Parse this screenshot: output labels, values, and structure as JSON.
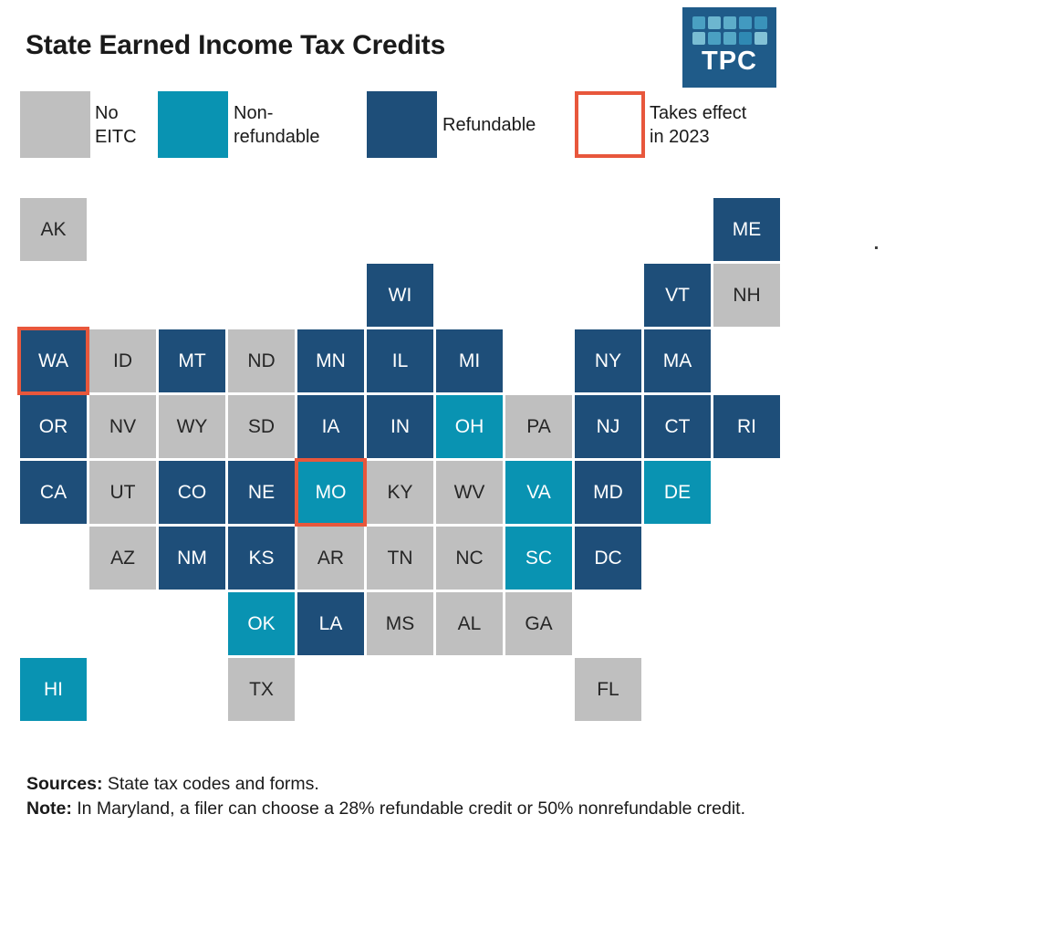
{
  "title": "State Earned Income Tax Credits",
  "logo": {
    "text": "TPC",
    "background": "#1f5b89",
    "squares": [
      [
        "#4aa0c2",
        "#6db6cf",
        "#5dadc9",
        "#429ac0",
        "#3a93ba"
      ],
      [
        "#79bdd3",
        "#4aa0c2",
        "#55a8c6",
        "#2f89b3",
        "#83c2d6"
      ]
    ]
  },
  "colors": {
    "no_eitc_gray": "#bfbfbf",
    "nonrefundable_teal": "#0993b2",
    "refundable_navy": "#1e4e79",
    "effect_2023_red": "#e8573c",
    "text_dark": "#1a1a1a",
    "tile_text_on_gray": "#262626",
    "tile_text_on_color": "#ffffff"
  },
  "legend": [
    {
      "type": "none",
      "label": "No EITC",
      "lines": [
        "No",
        "EITC"
      ],
      "color": "#bfbfbf"
    },
    {
      "type": "nonrefundable",
      "label": "Non-refundable",
      "lines": [
        "Non-",
        "refundable"
      ],
      "color": "#0993b2"
    },
    {
      "type": "refundable",
      "label": "Refundable",
      "lines": [
        "Refundable"
      ],
      "color": "#1e4e79"
    },
    {
      "type": "effect2023",
      "label": "Takes effect in 2023",
      "lines": [
        "Takes effect",
        "in 2023"
      ],
      "color": "#e8573c"
    }
  ],
  "footer": {
    "sources_label": "Sources:",
    "sources_text": " State tax codes and forms.",
    "note_label": "Note:",
    "note_text": " In Maryland, a filer can choose a 28% refundable credit or 50% nonrefundable credit."
  },
  "stray_dot": ".",
  "chart_data": {
    "type": "heatmap",
    "subtype": "state-tile-cartogram",
    "title": "State Earned Income Tax Credits",
    "legend_position": "top",
    "categories": [
      "No EITC",
      "Non-refundable",
      "Refundable",
      "Takes effect in 2023"
    ],
    "states": [
      {
        "code": "AK",
        "col": 0,
        "row": 0,
        "status": "none",
        "takes_effect_2023": false
      },
      {
        "code": "ME",
        "col": 10,
        "row": 0,
        "status": "refundable",
        "takes_effect_2023": false
      },
      {
        "code": "WI",
        "col": 5,
        "row": 1,
        "status": "refundable",
        "takes_effect_2023": false
      },
      {
        "code": "VT",
        "col": 9,
        "row": 1,
        "status": "refundable",
        "takes_effect_2023": false
      },
      {
        "code": "NH",
        "col": 10,
        "row": 1,
        "status": "none",
        "takes_effect_2023": false
      },
      {
        "code": "WA",
        "col": 0,
        "row": 2,
        "status": "refundable",
        "takes_effect_2023": true
      },
      {
        "code": "ID",
        "col": 1,
        "row": 2,
        "status": "none",
        "takes_effect_2023": false
      },
      {
        "code": "MT",
        "col": 2,
        "row": 2,
        "status": "refundable",
        "takes_effect_2023": false
      },
      {
        "code": "ND",
        "col": 3,
        "row": 2,
        "status": "none",
        "takes_effect_2023": false
      },
      {
        "code": "MN",
        "col": 4,
        "row": 2,
        "status": "refundable",
        "takes_effect_2023": false
      },
      {
        "code": "IL",
        "col": 5,
        "row": 2,
        "status": "refundable",
        "takes_effect_2023": false
      },
      {
        "code": "MI",
        "col": 6,
        "row": 2,
        "status": "refundable",
        "takes_effect_2023": false
      },
      {
        "code": "NY",
        "col": 8,
        "row": 2,
        "status": "refundable",
        "takes_effect_2023": false
      },
      {
        "code": "MA",
        "col": 9,
        "row": 2,
        "status": "refundable",
        "takes_effect_2023": false
      },
      {
        "code": "OR",
        "col": 0,
        "row": 3,
        "status": "refundable",
        "takes_effect_2023": false
      },
      {
        "code": "NV",
        "col": 1,
        "row": 3,
        "status": "none",
        "takes_effect_2023": false
      },
      {
        "code": "WY",
        "col": 2,
        "row": 3,
        "status": "none",
        "takes_effect_2023": false
      },
      {
        "code": "SD",
        "col": 3,
        "row": 3,
        "status": "none",
        "takes_effect_2023": false
      },
      {
        "code": "IA",
        "col": 4,
        "row": 3,
        "status": "refundable",
        "takes_effect_2023": false
      },
      {
        "code": "IN",
        "col": 5,
        "row": 3,
        "status": "refundable",
        "takes_effect_2023": false
      },
      {
        "code": "OH",
        "col": 6,
        "row": 3,
        "status": "nonrefundable",
        "takes_effect_2023": false
      },
      {
        "code": "PA",
        "col": 7,
        "row": 3,
        "status": "none",
        "takes_effect_2023": false
      },
      {
        "code": "NJ",
        "col": 8,
        "row": 3,
        "status": "refundable",
        "takes_effect_2023": false
      },
      {
        "code": "CT",
        "col": 9,
        "row": 3,
        "status": "refundable",
        "takes_effect_2023": false
      },
      {
        "code": "RI",
        "col": 10,
        "row": 3,
        "status": "refundable",
        "takes_effect_2023": false
      },
      {
        "code": "CA",
        "col": 0,
        "row": 4,
        "status": "refundable",
        "takes_effect_2023": false
      },
      {
        "code": "UT",
        "col": 1,
        "row": 4,
        "status": "none",
        "takes_effect_2023": false
      },
      {
        "code": "CO",
        "col": 2,
        "row": 4,
        "status": "refundable",
        "takes_effect_2023": false
      },
      {
        "code": "NE",
        "col": 3,
        "row": 4,
        "status": "refundable",
        "takes_effect_2023": false
      },
      {
        "code": "MO",
        "col": 4,
        "row": 4,
        "status": "nonrefundable",
        "takes_effect_2023": true
      },
      {
        "code": "KY",
        "col": 5,
        "row": 4,
        "status": "none",
        "takes_effect_2023": false
      },
      {
        "code": "WV",
        "col": 6,
        "row": 4,
        "status": "none",
        "takes_effect_2023": false
      },
      {
        "code": "VA",
        "col": 7,
        "row": 4,
        "status": "nonrefundable",
        "takes_effect_2023": false
      },
      {
        "code": "MD",
        "col": 8,
        "row": 4,
        "status": "refundable",
        "takes_effect_2023": false
      },
      {
        "code": "DE",
        "col": 9,
        "row": 4,
        "status": "nonrefundable",
        "takes_effect_2023": false
      },
      {
        "code": "AZ",
        "col": 1,
        "row": 5,
        "status": "none",
        "takes_effect_2023": false
      },
      {
        "code": "NM",
        "col": 2,
        "row": 5,
        "status": "refundable",
        "takes_effect_2023": false
      },
      {
        "code": "KS",
        "col": 3,
        "row": 5,
        "status": "refundable",
        "takes_effect_2023": false
      },
      {
        "code": "AR",
        "col": 4,
        "row": 5,
        "status": "none",
        "takes_effect_2023": false
      },
      {
        "code": "TN",
        "col": 5,
        "row": 5,
        "status": "none",
        "takes_effect_2023": false
      },
      {
        "code": "NC",
        "col": 6,
        "row": 5,
        "status": "none",
        "takes_effect_2023": false
      },
      {
        "code": "SC",
        "col": 7,
        "row": 5,
        "status": "nonrefundable",
        "takes_effect_2023": false
      },
      {
        "code": "DC",
        "col": 8,
        "row": 5,
        "status": "refundable",
        "takes_effect_2023": false
      },
      {
        "code": "OK",
        "col": 3,
        "row": 6,
        "status": "nonrefundable",
        "takes_effect_2023": false
      },
      {
        "code": "LA",
        "col": 4,
        "row": 6,
        "status": "refundable",
        "takes_effect_2023": false
      },
      {
        "code": "MS",
        "col": 5,
        "row": 6,
        "status": "none",
        "takes_effect_2023": false
      },
      {
        "code": "AL",
        "col": 6,
        "row": 6,
        "status": "none",
        "takes_effect_2023": false
      },
      {
        "code": "GA",
        "col": 7,
        "row": 6,
        "status": "none",
        "takes_effect_2023": false
      },
      {
        "code": "HI",
        "col": 0,
        "row": 7,
        "status": "nonrefundable",
        "takes_effect_2023": false
      },
      {
        "code": "TX",
        "col": 3,
        "row": 7,
        "status": "none",
        "takes_effect_2023": false
      },
      {
        "code": "FL",
        "col": 8,
        "row": 7,
        "status": "none",
        "takes_effect_2023": false
      }
    ]
  }
}
